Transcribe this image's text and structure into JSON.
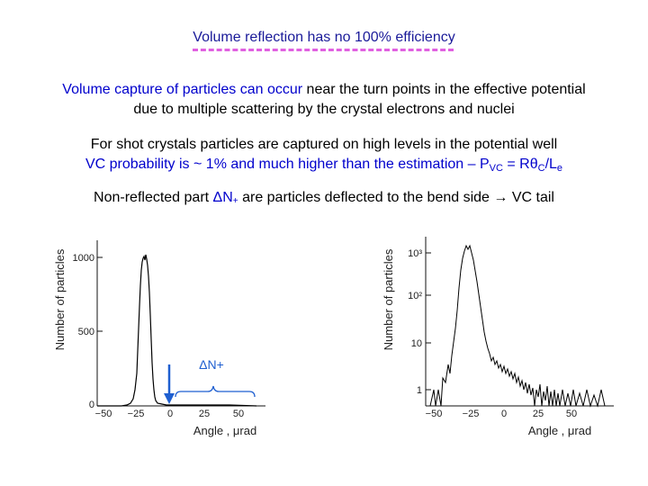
{
  "slide": {
    "title": "Volume reflection has no 100% efficiency",
    "para1": {
      "blue_part": "Volume capture of particles can occur",
      "rest_line1": " near the turn points in the effective potential",
      "line2": "due to multiple scattering by the crystal electrons and nuclei"
    },
    "para2": {
      "line1": "For shot crystals particles are captured on high levels in the potential well",
      "line2_main": "VC probability is ~ 1% and much higher than the estimation – P",
      "line2_sub1": "VC",
      "line2_mid": " = Rθ",
      "line2_sub2": "C",
      "line2_slash": "/L",
      "line2_sub3": "e"
    },
    "para3": {
      "prefix": "Non-reflected part ",
      "dn": "ΔN",
      "dn_sub": "+",
      "suffix": " are particles deflected to the bend side  →  VC tail"
    }
  },
  "plots": {
    "left": {
      "ylabel": "Number of particles",
      "xlabel": "Angle , μrad",
      "yticks": [
        "1000",
        "500",
        "0"
      ],
      "xticks": [
        "−50",
        "−25",
        "0",
        "25",
        "50"
      ],
      "annotation": "ΔN+",
      "arrow_color": "#1f5fd0",
      "brace_color": "#1f5fd0",
      "scale": "linear"
    },
    "right": {
      "ylabel": "Number of particles",
      "xlabel": "Angle , μrad",
      "yticks": [
        "10³",
        "10²",
        "10",
        "1"
      ],
      "xticks": [
        "−50",
        "−25",
        "0",
        "25",
        "50"
      ],
      "scale": "log"
    }
  }
}
